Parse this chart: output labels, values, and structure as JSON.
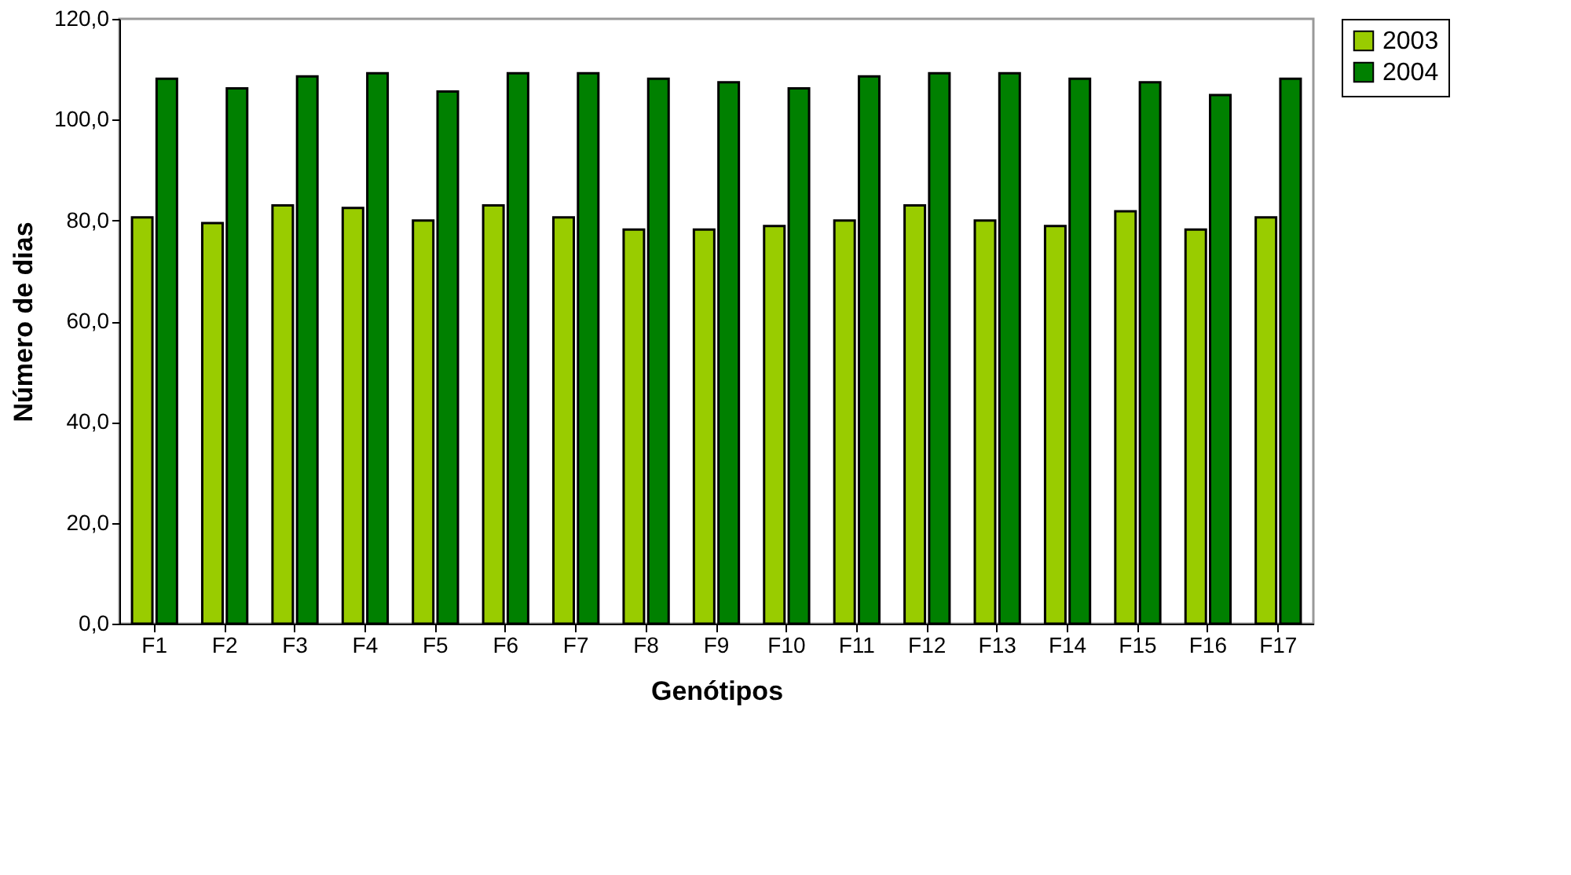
{
  "chart_data": {
    "type": "bar",
    "xlabel": "Genótipos",
    "ylabel": "Número de dias",
    "categories": [
      "F1",
      "F2",
      "F3",
      "F4",
      "F5",
      "F6",
      "F7",
      "F8",
      "F9",
      "F10",
      "F11",
      "F12",
      "F13",
      "F14",
      "F15",
      "F16",
      "F17"
    ],
    "series": [
      {
        "name": "2003",
        "color": "#99cc00",
        "values": [
          80.6,
          79.5,
          83.0,
          82.5,
          80.0,
          83.0,
          80.6,
          78.2,
          78.2,
          78.9,
          80.0,
          83.0,
          80.0,
          78.9,
          81.8,
          78.2,
          80.6
        ]
      },
      {
        "name": "2004",
        "color": "#008000",
        "values": [
          108.1,
          106.2,
          108.6,
          109.2,
          105.6,
          109.2,
          109.2,
          108.1,
          107.4,
          106.2,
          108.6,
          109.2,
          109.2,
          108.1,
          107.4,
          104.9,
          108.1
        ]
      }
    ],
    "ylim": [
      0,
      120
    ],
    "yticks": [
      {
        "value": 0,
        "label": "0,0"
      },
      {
        "value": 20,
        "label": "20,0"
      },
      {
        "value": 40,
        "label": "40,0"
      },
      {
        "value": 60,
        "label": "60,0"
      },
      {
        "value": 80,
        "label": "80,0"
      },
      {
        "value": 100,
        "label": "100,0"
      },
      {
        "value": 120,
        "label": "120,0"
      }
    ],
    "grid": false,
    "legend": "right"
  }
}
